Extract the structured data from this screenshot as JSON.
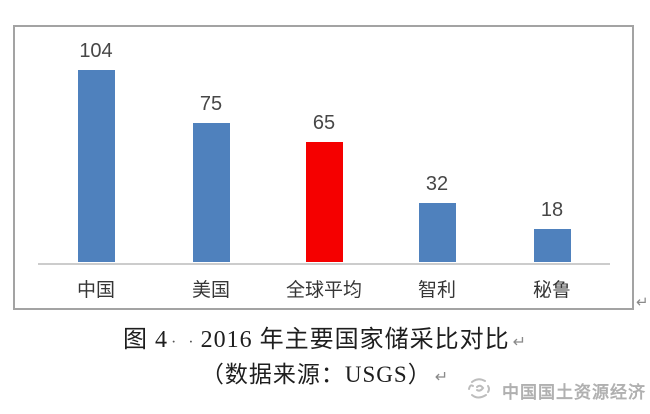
{
  "chart_data": {
    "type": "bar",
    "title": "图4 2016年主要国家储采比对比",
    "source_note": "数据来源：USGS",
    "categories": [
      "中国",
      "美国",
      "全球平均",
      "智利",
      "秘鲁"
    ],
    "values": [
      104,
      75,
      65,
      32,
      18
    ],
    "colors": [
      "#4f81bd",
      "#4f81bd",
      "#f50000",
      "#4f81bd",
      "#4f81bd"
    ],
    "bar_color_default": "#4f81bd",
    "bar_color_highlight": "#f50000",
    "highlight_category": "全球平均",
    "value_labels_shown": true,
    "xlabel": "",
    "ylabel": "",
    "ylim": [
      0,
      115
    ],
    "grid": false,
    "legend": false
  },
  "caption": {
    "line1_prefix": "图 4",
    "line1_space_marks": "· ·",
    "line1_text": "2016 年主要国家储采比对比",
    "line2_text": "（数据来源：USGS）",
    "return_mark": "↵"
  },
  "chart_frame": {
    "return_mark": "↵"
  },
  "watermark": {
    "logo": "seal-logo",
    "text": "中国国土资源经济"
  },
  "colors": {
    "bar_blue": "#4f81bd",
    "bar_red": "#f50000",
    "frame_border": "#a3a3a3",
    "axis_line": "#cccccc",
    "value_label": "#474747",
    "category_label": "#363636",
    "caption_text": "#1e1e1e",
    "return_mark": "#8a8a8a",
    "watermark_gray": "#b0b0b0"
  }
}
